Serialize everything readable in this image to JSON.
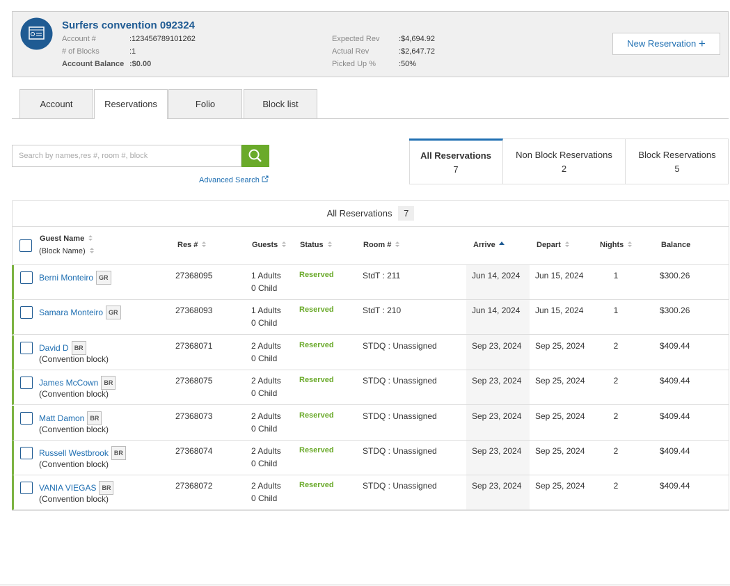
{
  "header": {
    "title": "Surfers convention 092324",
    "fields_left": [
      {
        "label": "Account #",
        "value": ":123456789101262"
      },
      {
        "label": "# of Blocks",
        "value": ":1"
      },
      {
        "label": "Account Balance",
        "value": ":$0.00"
      }
    ],
    "fields_right": [
      {
        "label": "Expected Rev",
        "value": ":$4,694.92"
      },
      {
        "label": "Actual Rev",
        "value": ":$2,647.72"
      },
      {
        "label": "Picked Up %",
        "value": ":50%"
      }
    ],
    "new_button": "New Reservation"
  },
  "tabs": [
    "Account",
    "Reservations",
    "Folio",
    "Block list"
  ],
  "search": {
    "placeholder": "Search by names,res #, room #, block",
    "advanced": "Advanced Search"
  },
  "filters": [
    {
      "label": "All Reservations",
      "count": 7
    },
    {
      "label": "Non Block Reservations",
      "count": 2
    },
    {
      "label": "Block Reservations",
      "count": 5
    }
  ],
  "table": {
    "caption": "All Reservations",
    "count": 7,
    "columns": [
      "Guest Name",
      "(Block Name)",
      "Res #",
      "Guests",
      "Status",
      "Room #",
      "Arrive",
      "Depart",
      "Nights",
      "Balance"
    ],
    "rows": [
      {
        "name": "Berni Monteiro",
        "tag": "GR",
        "res": "27368095",
        "adults": "1 Adults",
        "child": "0 Child",
        "status": "Reserved",
        "room": "StdT : 211",
        "arrive": "Jun 14, 2024",
        "depart": "Jun 15, 2024",
        "nights": 1,
        "balance": "$300.26"
      },
      {
        "name": "Samara Monteiro",
        "tag": "GR",
        "res": "27368093",
        "adults": "1 Adults",
        "child": "0 Child",
        "status": "Reserved",
        "room": "StdT : 210",
        "arrive": "Jun 14, 2024",
        "depart": "Jun 15, 2024",
        "nights": 1,
        "balance": "$300.26"
      },
      {
        "name": "David D",
        "tag": "BR",
        "block": "(Convention block)",
        "res": "27368071",
        "adults": "2 Adults",
        "child": "0 Child",
        "status": "Reserved",
        "room": "STDQ : Unassigned",
        "arrive": "Sep 23, 2024",
        "depart": "Sep 25, 2024",
        "nights": 2,
        "balance": "$409.44"
      },
      {
        "name": "James McCown",
        "tag": "BR",
        "block": "(Convention block)",
        "res": "27368075",
        "adults": "2 Adults",
        "child": "0 Child",
        "status": "Reserved",
        "room": "STDQ : Unassigned",
        "arrive": "Sep 23, 2024",
        "depart": "Sep 25, 2024",
        "nights": 2,
        "balance": "$409.44"
      },
      {
        "name": "Matt Damon",
        "tag": "BR",
        "block": "(Convention block)",
        "res": "27368073",
        "adults": "2 Adults",
        "child": "0 Child",
        "status": "Reserved",
        "room": "STDQ : Unassigned",
        "arrive": "Sep 23, 2024",
        "depart": "Sep 25, 2024",
        "nights": 2,
        "balance": "$409.44"
      },
      {
        "name": "Russell Westbrook",
        "tag": "BR",
        "block": "(Convention block)",
        "res": "27368074",
        "adults": "2 Adults",
        "child": "0 Child",
        "status": "Reserved",
        "room": "STDQ : Unassigned",
        "arrive": "Sep 23, 2024",
        "depart": "Sep 25, 2024",
        "nights": 2,
        "balance": "$409.44"
      },
      {
        "name": "VANIA VIEGAS",
        "tag": "BR",
        "block": "(Convention block)",
        "res": "27368072",
        "adults": "2 Adults",
        "child": "0 Child",
        "status": "Reserved",
        "room": "STDQ : Unassigned",
        "arrive": "Sep 23, 2024",
        "depart": "Sep 25, 2024",
        "nights": 2,
        "balance": "$409.44"
      }
    ]
  }
}
